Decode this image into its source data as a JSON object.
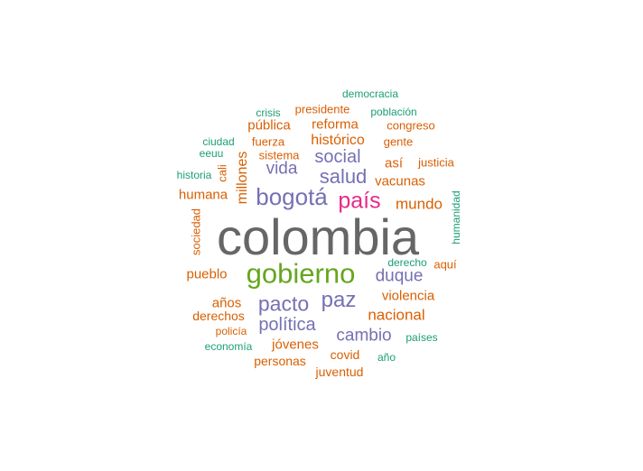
{
  "colors": {
    "gray": "#666666",
    "green": "#66a61e",
    "pink": "#e7298a",
    "purple": "#7570b3",
    "orange": "#d95f02",
    "teal": "#1b9e77"
  },
  "words": [
    {
      "text": "colombia",
      "color": "gray"
    },
    {
      "text": "gobierno",
      "color": "green"
    },
    {
      "text": "país",
      "color": "pink"
    },
    {
      "text": "bogotá",
      "color": "purple"
    },
    {
      "text": "salud",
      "color": "purple"
    },
    {
      "text": "social",
      "color": "purple"
    },
    {
      "text": "vida",
      "color": "purple"
    },
    {
      "text": "pacto",
      "color": "purple"
    },
    {
      "text": "paz",
      "color": "purple"
    },
    {
      "text": "duque",
      "color": "purple"
    },
    {
      "text": "política",
      "color": "purple"
    },
    {
      "text": "cambio",
      "color": "purple"
    },
    {
      "text": "histórico",
      "color": "orange"
    },
    {
      "text": "reforma",
      "color": "orange"
    },
    {
      "text": "pública",
      "color": "orange"
    },
    {
      "text": "presidente",
      "color": "orange"
    },
    {
      "text": "congreso",
      "color": "orange"
    },
    {
      "text": "gente",
      "color": "orange"
    },
    {
      "text": "fuerza",
      "color": "orange"
    },
    {
      "text": "sistema",
      "color": "orange"
    },
    {
      "text": "así",
      "color": "orange"
    },
    {
      "text": "justicia",
      "color": "orange"
    },
    {
      "text": "vacunas",
      "color": "orange"
    },
    {
      "text": "mundo",
      "color": "orange"
    },
    {
      "text": "humana",
      "color": "orange"
    },
    {
      "text": "millones",
      "color": "orange",
      "vertical": true
    },
    {
      "text": "cali",
      "color": "orange",
      "vertical": true
    },
    {
      "text": "sociedad",
      "color": "orange",
      "vertical": true
    },
    {
      "text": "pueblo",
      "color": "orange"
    },
    {
      "text": "aquí",
      "color": "orange"
    },
    {
      "text": "violencia",
      "color": "orange"
    },
    {
      "text": "nacional",
      "color": "orange"
    },
    {
      "text": "años",
      "color": "orange"
    },
    {
      "text": "derechos",
      "color": "orange"
    },
    {
      "text": "policía",
      "color": "orange"
    },
    {
      "text": "jóvenes",
      "color": "orange"
    },
    {
      "text": "personas",
      "color": "orange"
    },
    {
      "text": "covid",
      "color": "orange"
    },
    {
      "text": "juventud",
      "color": "orange"
    },
    {
      "text": "democracia",
      "color": "teal"
    },
    {
      "text": "crisis",
      "color": "teal"
    },
    {
      "text": "población",
      "color": "teal"
    },
    {
      "text": "ciudad",
      "color": "teal"
    },
    {
      "text": "eeuu",
      "color": "teal"
    },
    {
      "text": "historia",
      "color": "teal"
    },
    {
      "text": "humanidad",
      "color": "teal",
      "vertical": true
    },
    {
      "text": "derecho",
      "color": "teal"
    },
    {
      "text": "economía",
      "color": "teal"
    },
    {
      "text": "países",
      "color": "teal"
    },
    {
      "text": "año",
      "color": "teal"
    }
  ]
}
